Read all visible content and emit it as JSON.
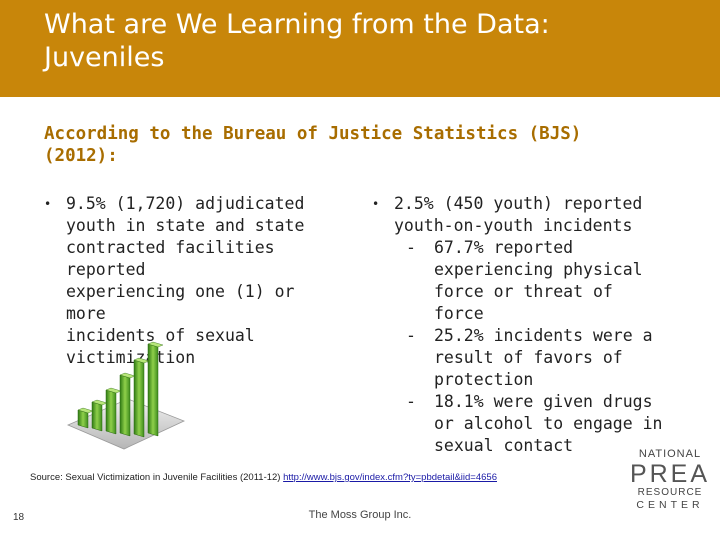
{
  "slide": {
    "title_line1": "What are We Learning from the Data:",
    "title_line2": "Juveniles",
    "subtitle_line1": "According to the Bureau of Justice Statistics (BJS)",
    "subtitle_line2": "(2012):",
    "left_bullet": {
      "lines": [
        "9.5% (1,720) adjudicated",
        "youth in state and state",
        "contracted facilities reported",
        "experiencing one (1) or more",
        "incidents of sexual",
        "victimization"
      ]
    },
    "right_bullet": {
      "lines": [
        "2.5% (450 youth) reported",
        "youth-on-youth incidents"
      ],
      "subitems": [
        {
          "lines": [
            "67.7% reported",
            "experiencing physical",
            "force or threat of force"
          ]
        },
        {
          "lines": [
            "25.2% incidents were a",
            "result of favors of",
            "protection"
          ]
        },
        {
          "lines": [
            "18.1% were given drugs",
            "or alcohol to engage in",
            "sexual contact"
          ]
        }
      ]
    },
    "source_text": "Source: Sexual Victimization in Juvenile Facilities (2011-12) ",
    "source_link": "http://www.bjs.gov/index.cfm?ty=pbdetail&iid=4656",
    "page_number": "18",
    "footer": "The Moss Group Inc.",
    "logo": {
      "line1": "NATIONAL",
      "line2": "PREA",
      "line3": "RESOURCE",
      "line4": "CENTER"
    },
    "bullet_char": "•",
    "dash_char": "-",
    "colors": {
      "header": "#c8860a",
      "subtitle": "#a86d00",
      "bars": "#5fae2e"
    }
  }
}
